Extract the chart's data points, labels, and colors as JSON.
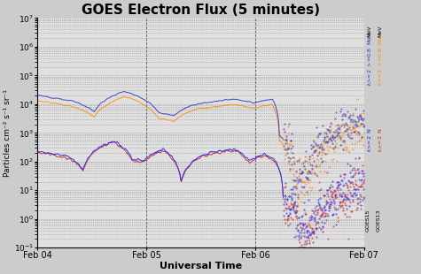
{
  "title": "GOES Electron Flux (5 minutes)",
  "xlabel": "Universal Time",
  "ylabel": "Particles cm⁻² s⁻¹ sr⁻¹",
  "background_color": "#cccccc",
  "plot_bg_color": "#e0e0e0",
  "goes15_08_color": "#3333bb",
  "goes13_08_color": "#ff8800",
  "goes15_2_color": "#2222ee",
  "goes13_2_color": "#cc2222",
  "xtick_labels": [
    "Feb 04",
    "Feb 05",
    "Feb 06",
    "Feb 07"
  ],
  "title_fontsize": 11,
  "axis_fontsize": 7,
  "ylabel_fontsize": 6.5
}
